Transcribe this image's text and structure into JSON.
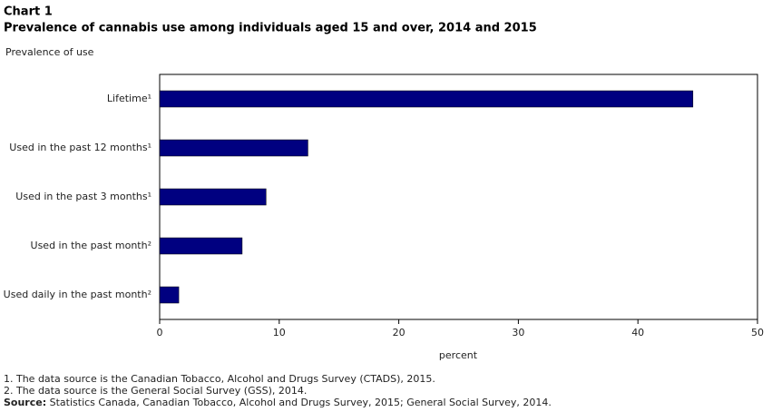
{
  "chart_data": {
    "type": "hbar",
    "title": "Chart 1",
    "subtitle": "Prevalence of cannabis use among individuals  aged 15 and over, 2014  and 2015",
    "y_label": "Prevalence of use",
    "x_label": "percent",
    "categories": [
      "Lifetime¹",
      "Used in the past 12 months¹",
      "Used in the past 3 months¹",
      "Used in the past month²",
      "Used daily in the past month²"
    ],
    "values": [
      44.6,
      12.4,
      8.9,
      6.9,
      1.6
    ],
    "color": "#000080",
    "xlim": [
      0,
      50
    ],
    "xticks": [
      0,
      10,
      20,
      30,
      40,
      50
    ],
    "grid": false,
    "notes": [
      "1. The data source is the Canadian Tobacco, Alcohol and Drugs Survey (CTADS), 2015.",
      "2. The data source is the General Social Survey (GSS), 2014."
    ],
    "source_label": "Source:",
    "source": " Statistics Canada, Canadian Tobacco, Alcohol and Drugs Survey, 2015; General Social Survey, 2014."
  }
}
